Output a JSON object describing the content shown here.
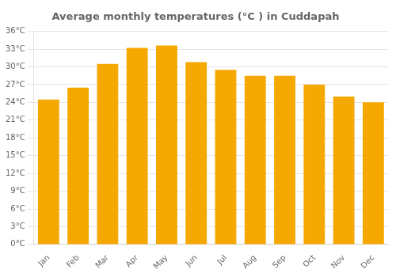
{
  "chart_data": {
    "type": "bar",
    "title": "Average monthly temperatures (°C ) in Cuddapah",
    "categories": [
      "Jan",
      "Feb",
      "Mar",
      "Apr",
      "May",
      "Jun",
      "Jul",
      "Aug",
      "Sep",
      "Oct",
      "Nov",
      "Dec"
    ],
    "values": [
      24.5,
      26.5,
      30.5,
      33.2,
      33.6,
      30.8,
      29.5,
      28.5,
      28.5,
      27.0,
      25.0,
      24.0
    ],
    "color": "#F5A800",
    "ylim": [
      0,
      36
    ],
    "yticks": [
      {
        "value": 0,
        "label": "0°C"
      },
      {
        "value": 3,
        "label": "3°C"
      },
      {
        "value": 6,
        "label": "6°C"
      },
      {
        "value": 9,
        "label": "9°C"
      },
      {
        "value": 12,
        "label": "12°C"
      },
      {
        "value": 15,
        "label": "15°C"
      },
      {
        "value": 18,
        "label": "18°C"
      },
      {
        "value": 21,
        "label": "21°C"
      },
      {
        "value": 24,
        "label": "24°C"
      },
      {
        "value": 27,
        "label": "27°C"
      },
      {
        "value": 30,
        "label": "30°C"
      },
      {
        "value": 33,
        "label": "33°C"
      },
      {
        "value": 36,
        "label": "36°C"
      }
    ],
    "grid": true
  }
}
